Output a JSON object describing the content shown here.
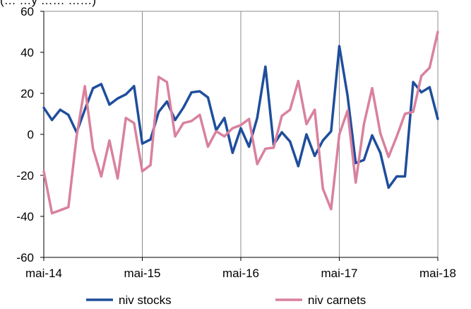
{
  "header": {
    "partial_title": "(… …y …… ……)"
  },
  "chart_data": {
    "type": "line",
    "x_start": "mai-14",
    "x_end": "mai-18",
    "x_count": 49,
    "x_tick_labels": [
      "mai-14",
      "mai-15",
      "mai-16",
      "mai-17",
      "mai-18"
    ],
    "y_tick_labels": [
      "60",
      "40",
      "20",
      "0",
      "-20",
      "-40",
      "-60"
    ],
    "ylim": [
      -60,
      60
    ],
    "grid": "vertical-at-x-ticks",
    "legend_position": "bottom",
    "series": [
      {
        "name": "niv stocks",
        "color": "#1f4e9c",
        "values": [
          13,
          7,
          12,
          9.5,
          1,
          12,
          22.5,
          24.5,
          14.5,
          17.5,
          19.5,
          23.5,
          -4.5,
          -2.5,
          11,
          16,
          7,
          13,
          20.5,
          21,
          18,
          2,
          8,
          -9,
          3,
          -6,
          8,
          33,
          -5,
          1,
          -3.5,
          -15.5,
          0,
          -10.5,
          -3,
          1.5,
          43,
          19,
          -14,
          -12.5,
          -0.5,
          -9,
          -26,
          -20.5,
          -20.5,
          25.5,
          20.5,
          23,
          7.5
        ]
      },
      {
        "name": "niv carnets",
        "color": "#d9819e",
        "values": [
          -18,
          -38.5,
          -37,
          -35.5,
          -1,
          23.5,
          -7,
          -20.5,
          -3,
          -21.5,
          8,
          5.5,
          -18,
          -15,
          28,
          25.5,
          -1,
          5.5,
          6.5,
          9.5,
          -6,
          1.5,
          -1,
          3,
          4.5,
          7.5,
          -14.5,
          -7,
          -6.5,
          9,
          12,
          26,
          5,
          12,
          -26.5,
          -36.5,
          0,
          11.5,
          -23.5,
          5,
          22.5,
          0.5,
          -11,
          -1,
          10,
          11,
          28.5,
          32.5,
          50
        ]
      }
    ]
  }
}
